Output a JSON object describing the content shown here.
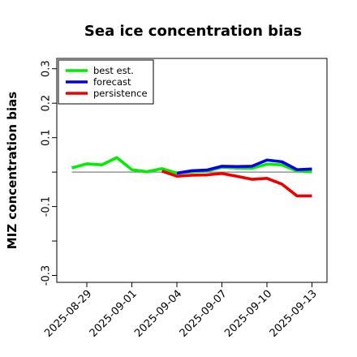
{
  "chart_data": {
    "type": "line",
    "title": "Sea ice concentration bias",
    "xlabel": "",
    "ylabel": "MIZ concentration bias",
    "x": [
      "2025-08-28",
      "2025-08-29",
      "2025-08-30",
      "2025-08-31",
      "2025-09-01",
      "2025-09-02",
      "2025-09-03",
      "2025-09-04",
      "2025-09-05",
      "2025-09-06",
      "2025-09-07",
      "2025-09-08",
      "2025-09-09",
      "2025-09-10",
      "2025-09-11",
      "2025-09-12",
      "2025-09-13"
    ],
    "xlim": [
      "2025-08-27",
      "2025-09-14"
    ],
    "ylim": [
      -0.32,
      0.33
    ],
    "x_ticks": [
      "2025-08-29",
      "2025-09-01",
      "2025-09-04",
      "2025-09-07",
      "2025-09-10",
      "2025-09-13"
    ],
    "x_tick_highlight": {
      "label": "2025-09-04",
      "color": "#228b22"
    },
    "y_ticks": [
      0.3,
      0.2,
      0.1,
      0.0,
      -0.1,
      -0.2,
      -0.3
    ],
    "y_tick_labels": [
      "0.3",
      "0.2",
      "0.1",
      "",
      "-0.1",
      "",
      "-0.3"
    ],
    "zero_line": {
      "y": 0.0,
      "color": "#808080"
    },
    "grid": false,
    "legend": {
      "placement": "top-left"
    },
    "series": [
      {
        "name": "best est.",
        "color": "#00ee00",
        "x": [
          "2025-08-28",
          "2025-08-29",
          "2025-08-30",
          "2025-08-31",
          "2025-09-01",
          "2025-09-02",
          "2025-09-03",
          "2025-09-04",
          "2025-09-05",
          "2025-09-06",
          "2025-09-07",
          "2025-09-08",
          "2025-09-09",
          "2025-09-10",
          "2025-09-11",
          "2025-09-12",
          "2025-09-13"
        ],
        "values": [
          0.012,
          0.024,
          0.021,
          0.042,
          0.007,
          0.001,
          0.01,
          -0.003,
          0.001,
          0.003,
          0.014,
          0.012,
          0.011,
          0.023,
          0.021,
          0.003,
          0.001
        ]
      },
      {
        "name": "forecast",
        "color": "#0000ee",
        "x": [
          "2025-09-04",
          "2025-09-05",
          "2025-09-06",
          "2025-09-07",
          "2025-09-08",
          "2025-09-09",
          "2025-09-10",
          "2025-09-11",
          "2025-09-12",
          "2025-09-13"
        ],
        "values": [
          -0.003,
          0.004,
          0.006,
          0.017,
          0.016,
          0.017,
          0.035,
          0.03,
          0.007,
          0.009
        ]
      },
      {
        "name": "persistence",
        "color": "#ee0000",
        "x": [
          "2025-09-03",
          "2025-09-04",
          "2025-09-05",
          "2025-09-06",
          "2025-09-07",
          "2025-09-08",
          "2025-09-09",
          "2025-09-10",
          "2025-09-11",
          "2025-09-12",
          "2025-09-13"
        ],
        "values": [
          0.003,
          -0.012,
          -0.009,
          -0.008,
          -0.004,
          -0.012,
          -0.021,
          -0.018,
          -0.035,
          -0.069,
          -0.069
        ]
      }
    ]
  }
}
